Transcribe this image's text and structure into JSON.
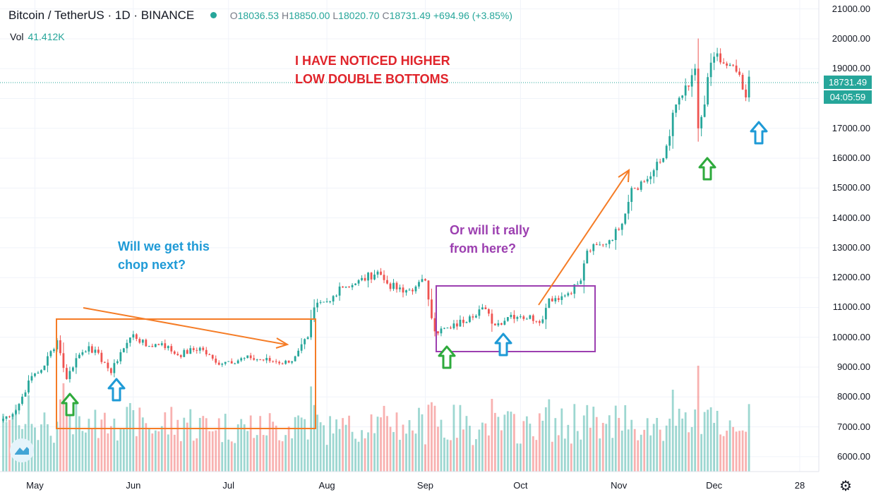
{
  "header": {
    "symbol": "Bitcoin / TetherUS · 1D · BINANCE",
    "open_label": "O",
    "open": "18036.53",
    "high_label": "H",
    "high": "18850.00",
    "low_label": "L",
    "low": "18020.70",
    "close_label": "C",
    "close": "18731.49",
    "change": "+694.96 (+3.85%)",
    "vol_label": "Vol",
    "vol_value": "41.412K"
  },
  "annotations": {
    "red_line1": "I HAVE NOTICED HIGHER",
    "red_line2": "LOW DOUBLE BOTTOMS",
    "blue_line1": "Will we get this",
    "blue_line2": "chop next?",
    "purple_line1": "Or will it rally",
    "purple_line2": "from here?"
  },
  "price_tags": {
    "last_price": "18731.49",
    "countdown": "04:05:59"
  },
  "colors": {
    "up": "#26a69a",
    "down": "#ef5350",
    "orange": "#f57c26",
    "purple": "#9c3fb0",
    "green_arrow": "#2eaa3c",
    "blue_arrow": "#1e9ad6"
  },
  "icons": {
    "settings": "gear-icon",
    "logo": "tradingview-logo-icon"
  },
  "chart_data": {
    "type": "candlestick",
    "symbol": "BTCUSDT",
    "timeframe": "1D",
    "y_ticks": [
      "6000.00",
      "7000.00",
      "8000.00",
      "9000.00",
      "10000.00",
      "11000.00",
      "12000.00",
      "13000.00",
      "14000.00",
      "15000.00",
      "16000.00",
      "17000.00",
      "18000.00",
      "19000.00",
      "20000.00",
      "21000.00"
    ],
    "x_ticks": [
      {
        "label": "May",
        "date": "2020-05-01"
      },
      {
        "label": "Jun",
        "date": "2020-06-01"
      },
      {
        "label": "Jul",
        "date": "2020-07-01"
      },
      {
        "label": "Aug",
        "date": "2020-08-01"
      },
      {
        "label": "Sep",
        "date": "2020-09-01"
      },
      {
        "label": "Oct",
        "date": "2020-10-01"
      },
      {
        "label": "Nov",
        "date": "2020-11-01"
      },
      {
        "label": "Dec",
        "date": "2020-12-01"
      },
      {
        "label": "28",
        "date": "2020-12-28"
      }
    ],
    "ylim": [
      5500,
      21300
    ],
    "xlim": [
      "2020-04-20",
      "2021-01-03"
    ],
    "last_price": 18731.49,
    "price_anchors": [
      [
        "2020-04-20",
        7200
      ],
      [
        "2020-04-25",
        7550
      ],
      [
        "2020-04-30",
        8700
      ],
      [
        "2020-05-03",
        8900
      ],
      [
        "2020-05-08",
        9900
      ],
      [
        "2020-05-11",
        8600
      ],
      [
        "2020-05-14",
        9300
      ],
      [
        "2020-05-18",
        9700
      ],
      [
        "2020-05-23",
        9150
      ],
      [
        "2020-05-25",
        8800
      ],
      [
        "2020-05-28",
        9500
      ],
      [
        "2020-06-01",
        10100
      ],
      [
        "2020-06-05",
        9700
      ],
      [
        "2020-06-10",
        9800
      ],
      [
        "2020-06-15",
        9400
      ],
      [
        "2020-06-22",
        9650
      ],
      [
        "2020-06-27",
        9150
      ],
      [
        "2020-07-01",
        9200
      ],
      [
        "2020-07-08",
        9300
      ],
      [
        "2020-07-15",
        9200
      ],
      [
        "2020-07-20",
        9150
      ],
      [
        "2020-07-23",
        9550
      ],
      [
        "2020-07-26",
        10000
      ],
      [
        "2020-07-28",
        11000
      ],
      [
        "2020-08-02",
        11200
      ],
      [
        "2020-08-05",
        11700
      ],
      [
        "2020-08-10",
        11800
      ],
      [
        "2020-08-17",
        12200
      ],
      [
        "2020-08-20",
        11800
      ],
      [
        "2020-08-25",
        11500
      ],
      [
        "2020-08-29",
        11700
      ],
      [
        "2020-09-01",
        11900
      ],
      [
        "2020-09-04",
        10200
      ],
      [
        "2020-09-09",
        10300
      ],
      [
        "2020-09-15",
        10700
      ],
      [
        "2020-09-19",
        11000
      ],
      [
        "2020-09-23",
        10400
      ],
      [
        "2020-09-28",
        10750
      ],
      [
        "2020-10-01",
        10700
      ],
      [
        "2020-10-08",
        10600
      ],
      [
        "2020-10-10",
        11300
      ],
      [
        "2020-10-15",
        11400
      ],
      [
        "2020-10-20",
        11900
      ],
      [
        "2020-10-22",
        12900
      ],
      [
        "2020-10-27",
        13100
      ],
      [
        "2020-11-01",
        13600
      ],
      [
        "2020-11-05",
        15000
      ],
      [
        "2020-11-10",
        15300
      ],
      [
        "2020-11-15",
        16000
      ],
      [
        "2020-11-19",
        17800
      ],
      [
        "2020-11-23",
        18400
      ],
      [
        "2020-11-25",
        19000
      ],
      [
        "2020-11-26",
        17000
      ],
      [
        "2020-11-28",
        17800
      ],
      [
        "2020-11-30",
        19200
      ],
      [
        "2020-12-01",
        19400
      ],
      [
        "2020-12-05",
        19100
      ],
      [
        "2020-12-08",
        18900
      ],
      [
        "2020-12-10",
        18300
      ],
      [
        "2020-12-11",
        18036.53
      ],
      [
        "2020-12-12",
        18731.49
      ]
    ],
    "volume_axis_max_approx": 9100
  }
}
